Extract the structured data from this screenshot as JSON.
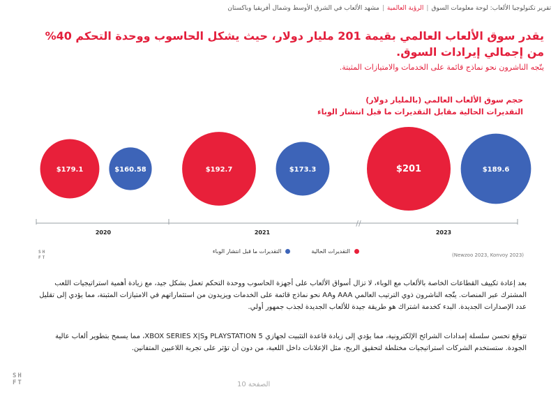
{
  "breadcrumb": {
    "report": "تقرير تكنولوجيا الألعاب: لوحة معلومات السوق",
    "section": "الرؤية العالمية",
    "scene": "مشهد الألعاب في الشرق الأوسط وشمال أفريقيا وباكستان"
  },
  "headline": "يقدر سوق الألعاب العالمي بقيمة 201 مليار دولار، حيث يشكل الحاسوب ووحدة التحكم 40% من إجمالي إيرادات السوق.",
  "subheadline": "يتّجه الناشرون نحو نماذج قائمة على الخدمات  والامتيازات المثبتة.",
  "chart_title_line1": "حجم سوق الألعاب العالمي (بالمليار دولار)",
  "chart_title_line2": "التقديرات الحالية مقابل التقديرات ما قبل انتشار الوباء",
  "legend": {
    "current": "التقديرات الحالية",
    "pre_pandemic": "التقديرات ما قبل انتشار الوباء"
  },
  "colors": {
    "current": "#e8203a",
    "pre_pandemic": "#3d64b8",
    "headline": "#e31e3b"
  },
  "chart_data": {
    "type": "bubble",
    "categories": [
      "2020",
      "2021",
      "2023"
    ],
    "series": [
      {
        "name": "التقديرات الحالية",
        "values": [
          179.1,
          192.7,
          201
        ],
        "labels": [
          "$179.1",
          "$192.7",
          "$201"
        ]
      },
      {
        "name": "التقديرات ما قبل انتشار الوباء",
        "values": [
          160.58,
          173.3,
          189.6
        ],
        "labels": [
          "$160.58",
          "$173.3",
          "$189.6"
        ]
      }
    ],
    "axis_break": "//"
  },
  "source": "(Newzoo 2023, Konvoy 2023)",
  "logo": {
    "line1": "SH",
    "line2": "FT"
  },
  "paragraph1": "بعد إعادة تكييف القطاعات الخاصة بالألعاب مع الوباء، لا تزال أسواق الألعاب على أجهزة الحاسوب ووحدة التحكم  تعمل بشكل جيد، مع زيادة أهمية استراتيجيات اللعب المشترك عبر المنصات. يتّجه الناشرون ذوي الترتيب العالمي AAA وAA نحو نماذج قائمة على الخدمات ويزيدون من استثماراتهم في الامتيازات المثبتة، مما يؤدي إلى تقليل عدد الإصدارات الجديدة. البدء كخدمة اشتراك هو طريقة جيدة للألعاب الجديدة لجذب جمهور أولي.",
  "paragraph2": "تتوقع تحسن سلسلة إمدادات الشرائح الإلكترونية، مما يؤدي إلى زيادة قاعدة التثبيت لجهازي PLAYSTATION 5 وXBOX SERIES X|S، مما يسمح بتطوير ألعاب عالية الجودة.  ستستخدم الشركات استراتيجيات مختلطة لتحقيق الربح، مثل الإعلانات داخل اللعبة، من دون أن تؤثر على تجربة اللاعبين المتفانين.",
  "footer": {
    "page_label": "الصفحة",
    "page_number": "10"
  }
}
